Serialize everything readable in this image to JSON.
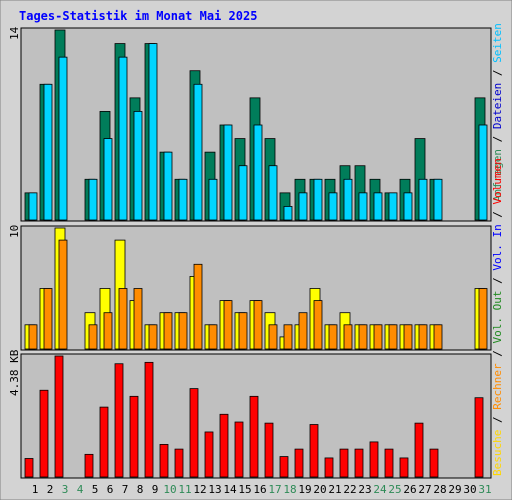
{
  "title": "Tages-Statistik im Monat Mai 2025",
  "colors": {
    "frame_bg": "#d3d3d3",
    "plot_bg": "#c0c0c0",
    "title": "#0000ff",
    "weekday_label": "#000000",
    "weekend_label": "#2e8b57",
    "hits": "#007d5a",
    "files": "#00d5ff",
    "pages": "#00c0ff",
    "visits": "#ffff00",
    "sites": "#ff8c00",
    "volume": "#ff0000",
    "vol_in": "#0000ff",
    "vol_out": "#228b22"
  },
  "right_labels": {
    "top": [
      {
        "text": "Anfragen",
        "color": "#2e8b57"
      },
      {
        "text": " / ",
        "color": "#000000"
      },
      {
        "text": "Dateien",
        "color": "#0000cd"
      },
      {
        "text": " / ",
        "color": "#000000"
      },
      {
        "text": "Seiten",
        "color": "#00bfff"
      }
    ],
    "mid": [
      {
        "text": "Besuche",
        "color": "#ffd700"
      },
      {
        "text": " / ",
        "color": "#000000"
      },
      {
        "text": "Rechner",
        "color": "#ff8c00"
      },
      {
        "text": " / ",
        "color": "#000000"
      },
      {
        "text": "Vol. Out",
        "color": "#228b22"
      },
      {
        "text": " / ",
        "color": "#000000"
      },
      {
        "text": "Vol. In",
        "color": "#0000ff"
      },
      {
        "text": " / ",
        "color": "#000000"
      },
      {
        "text": "Volumen",
        "color": "#ff0000"
      }
    ]
  },
  "chart_data": [
    {
      "type": "bar",
      "panel": "top",
      "ymax_label": "14",
      "ylim": [
        0,
        14
      ],
      "categories": [
        "1",
        "2",
        "3",
        "4",
        "5",
        "6",
        "7",
        "8",
        "9",
        "10",
        "11",
        "12",
        "13",
        "14",
        "15",
        "16",
        "17",
        "18",
        "19",
        "20",
        "21",
        "22",
        "23",
        "24",
        "25",
        "26",
        "27",
        "28",
        "29",
        "30",
        "31"
      ],
      "weekend_days": [
        "3",
        "4",
        "10",
        "11",
        "17",
        "18",
        "24",
        "25",
        "31"
      ],
      "series": [
        {
          "name": "Anfragen",
          "key": "hits",
          "values": [
            2,
            10,
            14,
            0,
            3,
            8,
            13,
            9,
            13,
            5,
            3,
            11,
            5,
            7,
            6,
            9,
            6,
            2,
            3,
            3,
            3,
            4,
            4,
            3,
            2,
            3,
            6,
            3,
            0,
            0,
            9
          ]
        },
        {
          "name": "Dateien",
          "key": "files",
          "values": [
            2,
            10,
            12,
            0,
            3,
            6,
            12,
            8,
            13,
            5,
            3,
            10,
            3,
            7,
            4,
            7,
            4,
            1,
            2,
            3,
            2,
            3,
            2,
            2,
            2,
            2,
            3,
            3,
            0,
            0,
            7
          ]
        }
      ]
    },
    {
      "type": "bar",
      "panel": "mid",
      "ymax_label": "10",
      "ylim": [
        0,
        10
      ],
      "categories": [
        "1",
        "2",
        "3",
        "4",
        "5",
        "6",
        "7",
        "8",
        "9",
        "10",
        "11",
        "12",
        "13",
        "14",
        "15",
        "16",
        "17",
        "18",
        "19",
        "20",
        "21",
        "22",
        "23",
        "24",
        "25",
        "26",
        "27",
        "28",
        "29",
        "30",
        "31"
      ],
      "series": [
        {
          "name": "Besuche",
          "key": "visits",
          "values": [
            2,
            5,
            10,
            0,
            3,
            5,
            9,
            4,
            2,
            3,
            3,
            6,
            2,
            4,
            3,
            4,
            3,
            1,
            2,
            5,
            2,
            3,
            2,
            2,
            2,
            2,
            2,
            2,
            0,
            0,
            5
          ]
        },
        {
          "name": "Rechner",
          "key": "sites",
          "values": [
            2,
            5,
            9,
            0,
            2,
            3,
            5,
            5,
            2,
            3,
            3,
            7,
            2,
            4,
            3,
            4,
            2,
            2,
            3,
            4,
            2,
            2,
            2,
            2,
            2,
            2,
            2,
            2,
            0,
            0,
            5
          ]
        }
      ]
    },
    {
      "type": "bar",
      "panel": "bottom",
      "ymax_label": "4.38 KB",
      "ylim": [
        0,
        4.38
      ],
      "categories": [
        "1",
        "2",
        "3",
        "4",
        "5",
        "6",
        "7",
        "8",
        "9",
        "10",
        "11",
        "12",
        "13",
        "14",
        "15",
        "16",
        "17",
        "18",
        "19",
        "20",
        "21",
        "22",
        "23",
        "24",
        "25",
        "26",
        "27",
        "28",
        "29",
        "30",
        "31"
      ],
      "series": [
        {
          "name": "Volumen",
          "key": "volume",
          "values": [
            0.67,
            3.14,
            4.38,
            0,
            0.82,
            2.53,
            4.1,
            2.92,
            4.15,
            1.18,
            1.01,
            3.2,
            1.63,
            2.27,
            1.99,
            2.92,
            1.95,
            0.74,
            1.01,
            1.9,
            0.69,
            1.01,
            1.01,
            1.27,
            1.01,
            0.69,
            1.95,
            1.01,
            0,
            0,
            2.87
          ]
        }
      ]
    }
  ]
}
